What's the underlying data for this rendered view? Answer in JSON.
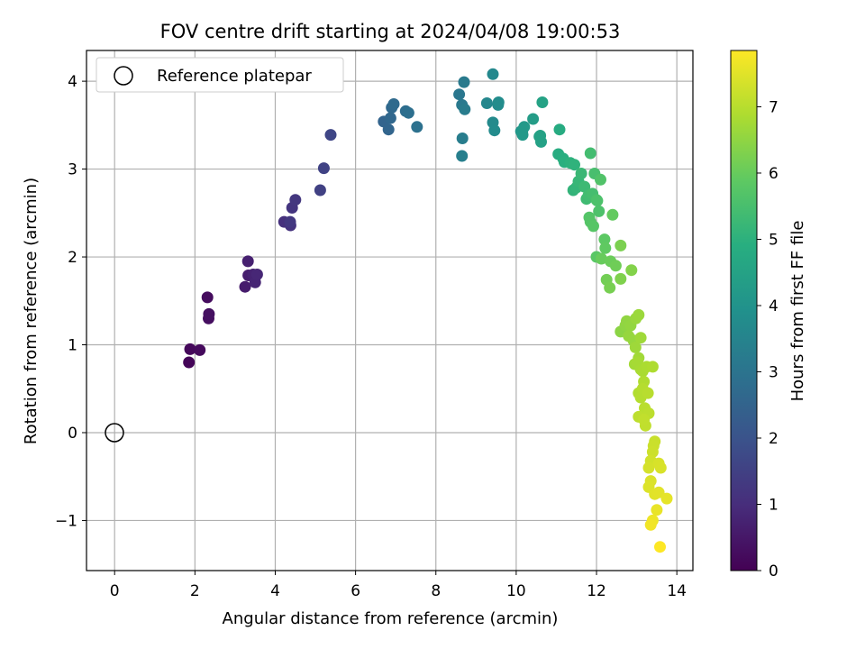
{
  "chart_data": {
    "type": "scatter",
    "title": "FOV centre drift starting at 2024/04/08 19:00:53",
    "xlabel": "Angular distance from reference (arcmin)",
    "ylabel": "Rotation from reference (arcmin)",
    "xlim": [
      -0.7,
      14.4
    ],
    "ylim": [
      -1.57,
      4.35
    ],
    "xticks": [
      0,
      2,
      4,
      6,
      8,
      10,
      12,
      14
    ],
    "xtick_labels": [
      "0",
      "2",
      "4",
      "6",
      "8",
      "10",
      "12",
      "14"
    ],
    "yticks": [
      -1,
      0,
      1,
      2,
      3,
      4
    ],
    "ytick_labels": [
      "−1",
      "0",
      "1",
      "2",
      "3",
      "4"
    ],
    "grid": true,
    "legend": {
      "placement": "top-left",
      "entries": [
        "Reference platepar"
      ]
    },
    "reference_point": {
      "x": 0,
      "y": 0
    },
    "colorbar": {
      "label": "Hours from first FF file",
      "range": [
        0,
        7.85
      ],
      "ticks": [
        0,
        1,
        2,
        3,
        4,
        5,
        6,
        7
      ],
      "tick_labels": [
        "0",
        "1",
        "2",
        "3",
        "4",
        "5",
        "6",
        "7"
      ],
      "colormap": "viridis"
    },
    "points": [
      [
        1.85,
        0.8,
        0.1
      ],
      [
        1.88,
        0.95,
        0.15
      ],
      [
        2.12,
        0.94,
        0.2
      ],
      [
        2.31,
        1.54,
        0.25
      ],
      [
        2.34,
        1.3,
        0.3
      ],
      [
        2.35,
        1.35,
        0.33
      ],
      [
        3.25,
        1.66,
        0.6
      ],
      [
        3.33,
        1.79,
        0.65
      ],
      [
        3.32,
        1.95,
        0.7
      ],
      [
        3.45,
        1.8,
        0.75
      ],
      [
        3.5,
        1.71,
        0.8
      ],
      [
        3.55,
        1.8,
        0.85
      ],
      [
        4.22,
        2.4,
        1.1
      ],
      [
        4.38,
        2.36,
        1.15
      ],
      [
        4.42,
        2.56,
        1.2
      ],
      [
        4.5,
        2.65,
        1.25
      ],
      [
        4.37,
        2.4,
        1.28
      ],
      [
        5.12,
        2.76,
        1.5
      ],
      [
        5.21,
        3.01,
        1.55
      ],
      [
        5.38,
        3.39,
        1.65
      ],
      [
        6.7,
        3.54,
        2.5
      ],
      [
        6.82,
        3.45,
        2.55
      ],
      [
        6.87,
        3.58,
        2.6
      ],
      [
        6.9,
        3.7,
        2.65
      ],
      [
        6.95,
        3.74,
        2.7
      ],
      [
        7.25,
        3.66,
        2.8
      ],
      [
        7.32,
        3.64,
        2.85
      ],
      [
        7.53,
        3.48,
        2.9
      ],
      [
        8.58,
        3.85,
        3.1
      ],
      [
        8.65,
        3.73,
        3.15
      ],
      [
        8.7,
        3.99,
        3.2
      ],
      [
        8.72,
        3.68,
        3.25
      ],
      [
        8.66,
        3.35,
        3.3
      ],
      [
        8.65,
        3.15,
        3.35
      ],
      [
        9.27,
        3.75,
        3.6
      ],
      [
        9.42,
        4.08,
        3.65
      ],
      [
        9.42,
        3.53,
        3.7
      ],
      [
        9.46,
        3.44,
        3.72
      ],
      [
        9.55,
        3.73,
        3.75
      ],
      [
        9.56,
        3.76,
        3.78
      ],
      [
        10.12,
        3.43,
        4.1
      ],
      [
        10.15,
        3.42,
        4.15
      ],
      [
        10.16,
        3.39,
        4.18
      ],
      [
        10.2,
        3.48,
        4.2
      ],
      [
        10.42,
        3.57,
        4.3
      ],
      [
        10.58,
        3.37,
        4.4
      ],
      [
        10.62,
        3.31,
        4.45
      ],
      [
        10.6,
        3.38,
        4.48
      ],
      [
        10.65,
        3.76,
        4.5
      ],
      [
        11.08,
        3.45,
        4.8
      ],
      [
        11.05,
        3.17,
        4.85
      ],
      [
        11.17,
        3.12,
        4.9
      ],
      [
        11.2,
        3.08,
        4.95
      ],
      [
        11.35,
        3.07,
        5.0
      ],
      [
        11.45,
        3.05,
        5.05
      ],
      [
        11.42,
        2.76,
        5.1
      ],
      [
        11.5,
        2.79,
        5.15
      ],
      [
        11.55,
        2.86,
        5.2
      ],
      [
        11.62,
        2.95,
        5.25
      ],
      [
        11.7,
        2.8,
        5.3
      ],
      [
        11.75,
        2.66,
        5.35
      ],
      [
        11.8,
        2.7,
        5.4
      ],
      [
        11.85,
        3.18,
        5.42
      ],
      [
        11.9,
        2.72,
        5.45
      ],
      [
        11.95,
        2.95,
        5.5
      ],
      [
        12.0,
        2.65,
        5.55
      ],
      [
        12.02,
        2.64,
        5.58
      ],
      [
        12.06,
        2.52,
        5.6
      ],
      [
        12.1,
        2.88,
        5.65
      ],
      [
        11.82,
        2.45,
        5.7
      ],
      [
        11.85,
        2.4,
        5.72
      ],
      [
        11.92,
        2.35,
        5.75
      ],
      [
        12.0,
        2.0,
        5.8
      ],
      [
        12.2,
        2.2,
        5.85
      ],
      [
        12.22,
        2.1,
        5.9
      ],
      [
        12.4,
        2.48,
        5.95
      ],
      [
        12.12,
        1.98,
        6.0
      ],
      [
        12.35,
        1.95,
        6.05
      ],
      [
        12.48,
        1.9,
        6.1
      ],
      [
        12.25,
        1.74,
        6.15
      ],
      [
        12.33,
        1.65,
        6.2
      ],
      [
        12.6,
        2.13,
        6.25
      ],
      [
        12.6,
        1.75,
        6.3
      ],
      [
        12.87,
        1.85,
        6.35
      ],
      [
        12.6,
        1.15,
        6.45
      ],
      [
        12.72,
        1.22,
        6.5
      ],
      [
        12.75,
        1.27,
        6.52
      ],
      [
        12.85,
        1.22,
        6.55
      ],
      [
        12.8,
        1.1,
        6.58
      ],
      [
        12.92,
        1.05,
        6.6
      ],
      [
        12.98,
        1.3,
        6.62
      ],
      [
        13.05,
        1.34,
        6.65
      ],
      [
        12.97,
        0.97,
        6.68
      ],
      [
        13.1,
        1.08,
        6.7
      ],
      [
        13.05,
        0.85,
        6.72
      ],
      [
        12.95,
        0.78,
        6.75
      ],
      [
        13.02,
        0.8,
        6.78
      ],
      [
        13.1,
        0.72,
        6.8
      ],
      [
        13.15,
        0.7,
        6.83
      ],
      [
        13.25,
        0.75,
        6.85
      ],
      [
        13.4,
        0.75,
        6.88
      ],
      [
        13.18,
        0.58,
        6.9
      ],
      [
        13.05,
        0.45,
        6.92
      ],
      [
        13.1,
        0.4,
        6.95
      ],
      [
        13.15,
        0.5,
        6.97
      ],
      [
        13.28,
        0.45,
        7.0
      ],
      [
        13.2,
        0.28,
        7.02
      ],
      [
        13.3,
        0.22,
        7.05
      ],
      [
        13.05,
        0.18,
        7.07
      ],
      [
        13.22,
        0.08,
        7.1
      ],
      [
        13.18,
        0.15,
        7.12
      ],
      [
        13.45,
        -0.1,
        7.2
      ],
      [
        13.42,
        -0.15,
        7.22
      ],
      [
        13.4,
        -0.22,
        7.25
      ],
      [
        13.35,
        -0.32,
        7.3
      ],
      [
        13.3,
        -0.4,
        7.35
      ],
      [
        13.55,
        -0.35,
        7.38
      ],
      [
        13.6,
        -0.4,
        7.4
      ],
      [
        13.35,
        -0.55,
        7.42
      ],
      [
        13.3,
        -0.62,
        7.45
      ],
      [
        13.45,
        -0.7,
        7.5
      ],
      [
        13.55,
        -0.68,
        7.52
      ],
      [
        13.75,
        -0.75,
        7.55
      ],
      [
        13.5,
        -0.88,
        7.6
      ],
      [
        13.4,
        -1.0,
        7.65
      ],
      [
        13.35,
        -1.05,
        7.7
      ],
      [
        13.58,
        -1.3,
        7.85
      ]
    ]
  }
}
